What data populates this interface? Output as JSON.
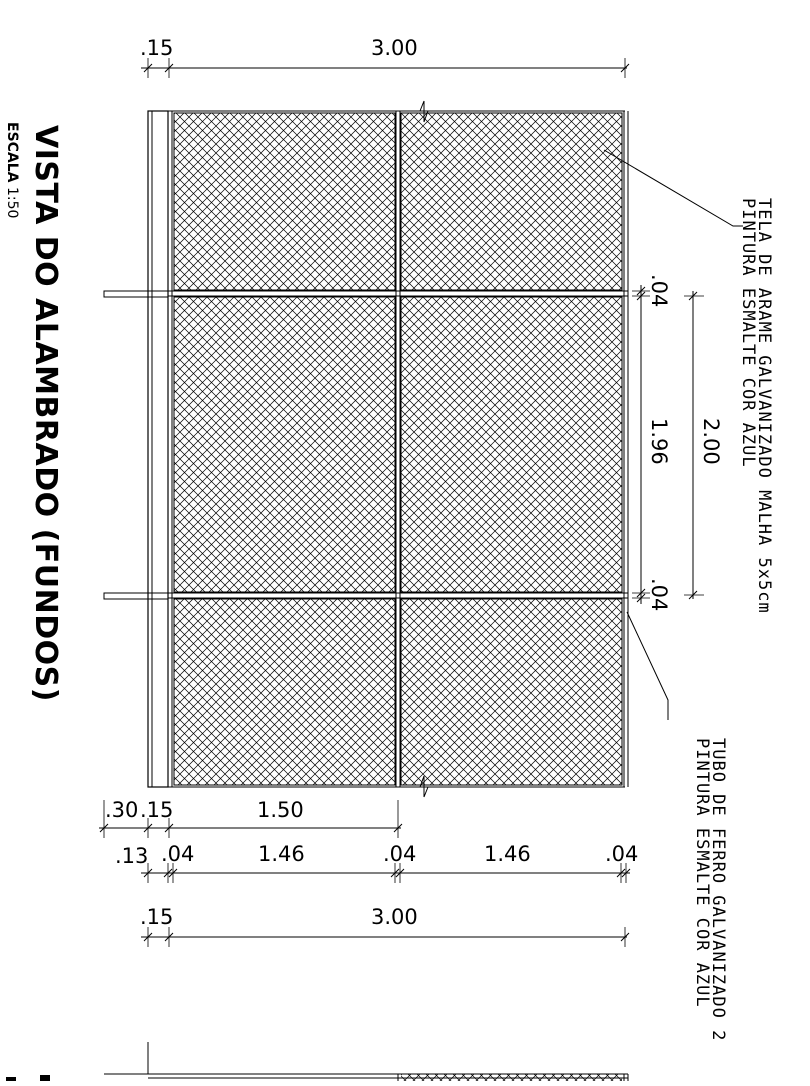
{
  "title": "VISTA DO ALAMBRADO (FUNDOS)",
  "scale": {
    "label": "ESCALA",
    "value": "1:50"
  },
  "notes": {
    "tela_line1": "TELA DE ARAME GALVANIZADO MALHA 5x5cm",
    "tela_line2": "PINTURA ESMALTE COR AZUL",
    "tubo_line1": "TUBO DE FERRO GALVANIZADO 2",
    "tubo_line2": "PINTURA ESMALTE COR AZUL"
  },
  "dimensions": {
    "top_post": ".15",
    "top_total": "3.00",
    "height_total": "2.00",
    "height_bar_top": ".04",
    "height_panel": "1.96",
    "height_bar_bottom": ".04",
    "bottom_base": ".30",
    "bottom_post": ".15",
    "bottom_half": "1.50",
    "bottom_offset": ".13",
    "bottom_bar1": ".04",
    "bottom_panel1": "1.46",
    "bottom_bar2": ".04",
    "bottom_panel2": "1.46",
    "bottom_bar3": ".04",
    "lower_post": ".15",
    "lower_total": "3.00"
  }
}
